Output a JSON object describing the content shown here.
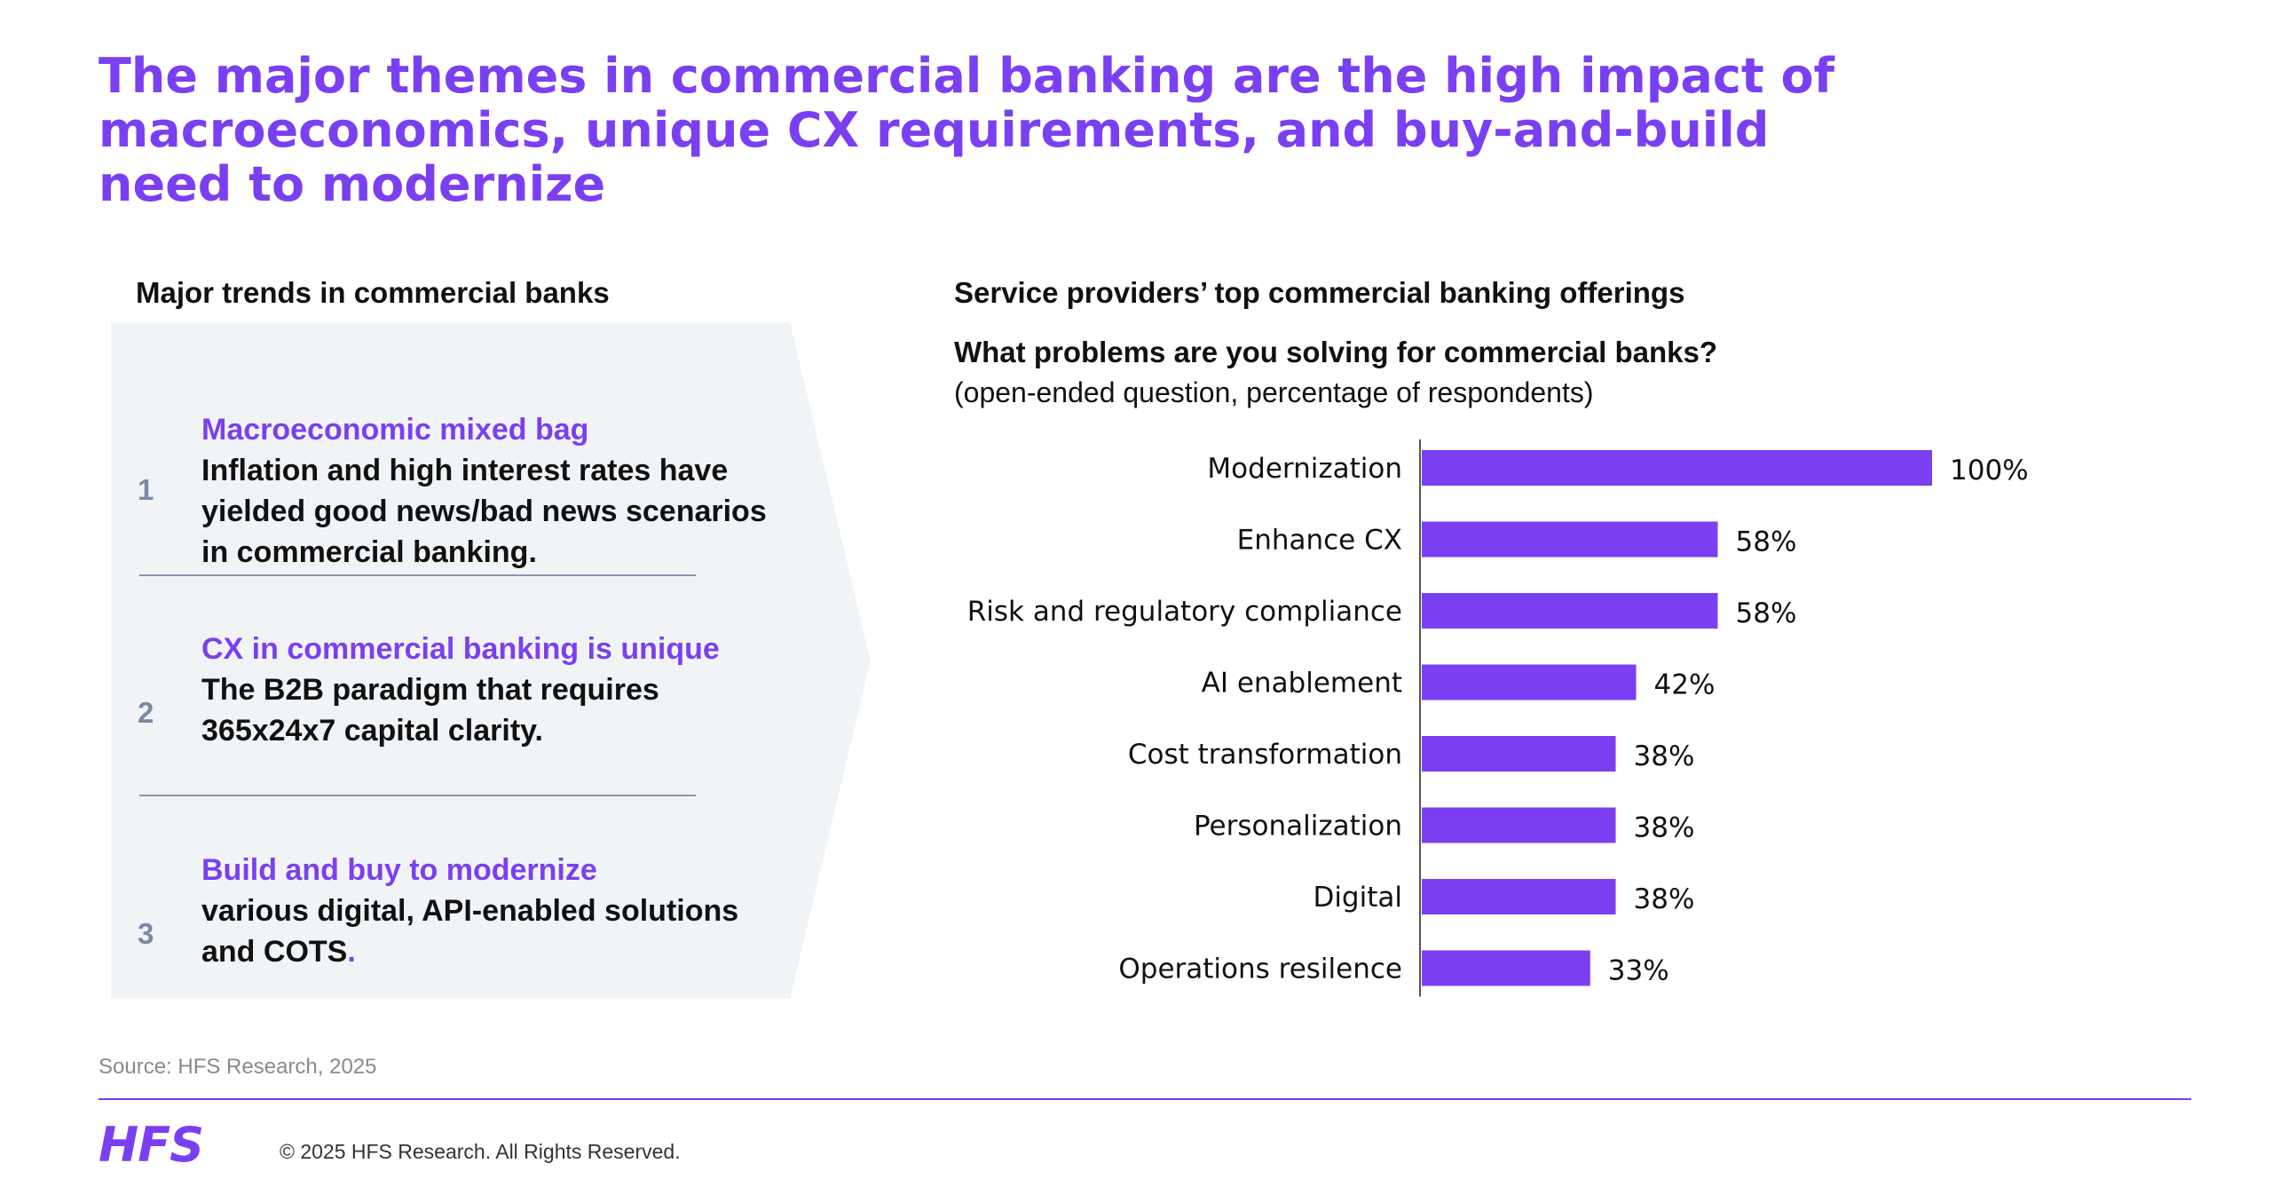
{
  "title": {
    "line1": "The major themes in commercial banking are the high impact of",
    "line2": "macroeconomics, unique CX requirements, and buy-and-build",
    "line3": "need to modernize"
  },
  "left": {
    "heading": "Major trends in commercial banks",
    "trends": [
      {
        "number": "1",
        "highlight": "Macroeconomic mixed bag",
        "text": "Inflation and high interest rates have yielded good news/bad news scenarios in commercial banking."
      },
      {
        "number": "2",
        "highlight": "CX in commercial banking is unique",
        "text": "The B2B paradigm that requires 365x24x7 capital clarity."
      },
      {
        "number": "3",
        "highlight": "Build and buy to modernize",
        "text": "various digital, API-enabled solutions and COTS",
        "trailing": "."
      }
    ]
  },
  "right": {
    "heading": "Service providers’ top commercial banking offerings",
    "question": "What problems are you solving for commercial banks?",
    "subtitle": "(open-ended question, percentage of respondents)"
  },
  "chart_data": {
    "type": "bar",
    "orientation": "horizontal",
    "categories": [
      "Modernization",
      "Enhance CX",
      "Risk and regulatory compliance",
      "AI enablement",
      "Cost transformation",
      "Personalization",
      "Digital",
      "Operations resilence"
    ],
    "values": [
      100,
      58,
      58,
      42,
      38,
      38,
      38,
      33
    ],
    "data_labels": [
      "100%",
      "58%",
      "58%",
      "42%",
      "38%",
      "38%",
      "38%",
      "33%"
    ],
    "unit": "%",
    "xlim": [
      0,
      100
    ],
    "bar_color": "#7b3ff2",
    "grid": false
  },
  "footer": {
    "source": "Source: HFS Research, 2025",
    "logo": "HFS",
    "copyright": "© 2025 HFS Research. All Rights Reserved."
  },
  "colors": {
    "accent": "#7b3ff2",
    "panel": "#f1f4f7",
    "number": "#7a8aa6"
  }
}
